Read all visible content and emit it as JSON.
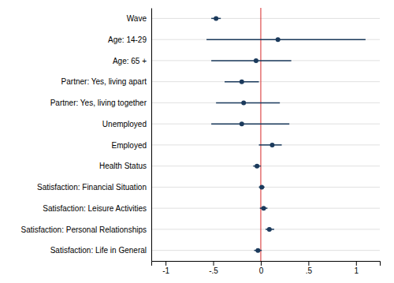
{
  "chart_data": {
    "type": "dot",
    "categories": [
      "Wave",
      "Age: 14-29",
      "Age: 65 +",
      "Partner: Yes, living apart",
      "Partner: Yes, living together",
      "Unemployed",
      "Employed",
      "Health Status",
      "Satisfaction: Financial Situation",
      "Satisfaction: Leisure Activities",
      "Satisfaction: Personal Relationships",
      "Satisfaction: Life in General"
    ],
    "values": [
      -0.47,
      0.18,
      -0.05,
      -0.2,
      -0.18,
      -0.2,
      0.12,
      -0.04,
      0.01,
      0.03,
      0.09,
      -0.03
    ],
    "ci_low": [
      -0.52,
      -0.57,
      -0.52,
      -0.38,
      -0.47,
      -0.52,
      -0.02,
      -0.08,
      -0.02,
      -0.01,
      0.05,
      -0.07
    ],
    "ci_high": [
      -0.42,
      1.1,
      0.32,
      -0.02,
      0.2,
      0.3,
      0.22,
      0.0,
      0.04,
      0.07,
      0.14,
      0.01
    ],
    "reference_line": 0,
    "color": "#1b3a5c",
    "xlim": [
      -1.15,
      1.25
    ],
    "xticks": [
      -1,
      {
        "value": -0.5,
        "label": "-.5"
      },
      0,
      {
        "value": 0.5,
        "label": ".5"
      },
      1
    ],
    "grid": true
  }
}
